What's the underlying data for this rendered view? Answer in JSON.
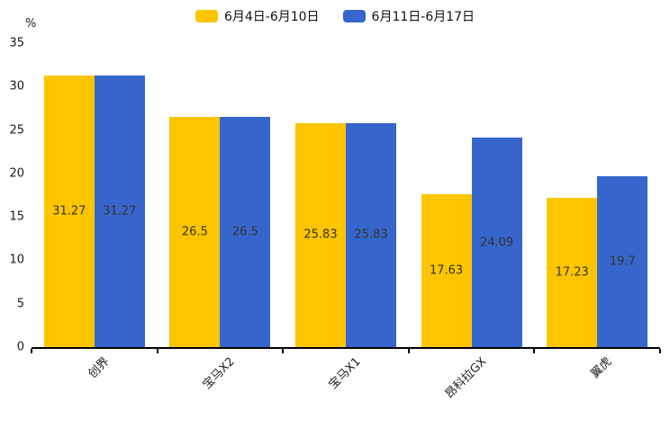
{
  "chart_data": {
    "type": "bar",
    "title": "",
    "ylabel": "%",
    "ylim": [
      0,
      35
    ],
    "yticks": [
      0,
      5,
      10,
      15,
      20,
      25,
      30,
      35
    ],
    "grid": false,
    "legend_position": "top",
    "background_color": "#ffffff",
    "axis_color": "#000000",
    "value_label_color": "#333333",
    "categories": [
      "创界",
      "宝马X2",
      "宝马X1",
      "昂科拉GX",
      "翼虎"
    ],
    "series": [
      {
        "name": "6月4日-6月10日",
        "color": "#FDC500",
        "values": [
          31.27,
          26.5,
          25.83,
          17.63,
          17.23
        ]
      },
      {
        "name": "6月11日-6月17日",
        "color": "#3666CB",
        "values": [
          31.27,
          26.5,
          25.83,
          24.09,
          19.7
        ]
      }
    ]
  }
}
